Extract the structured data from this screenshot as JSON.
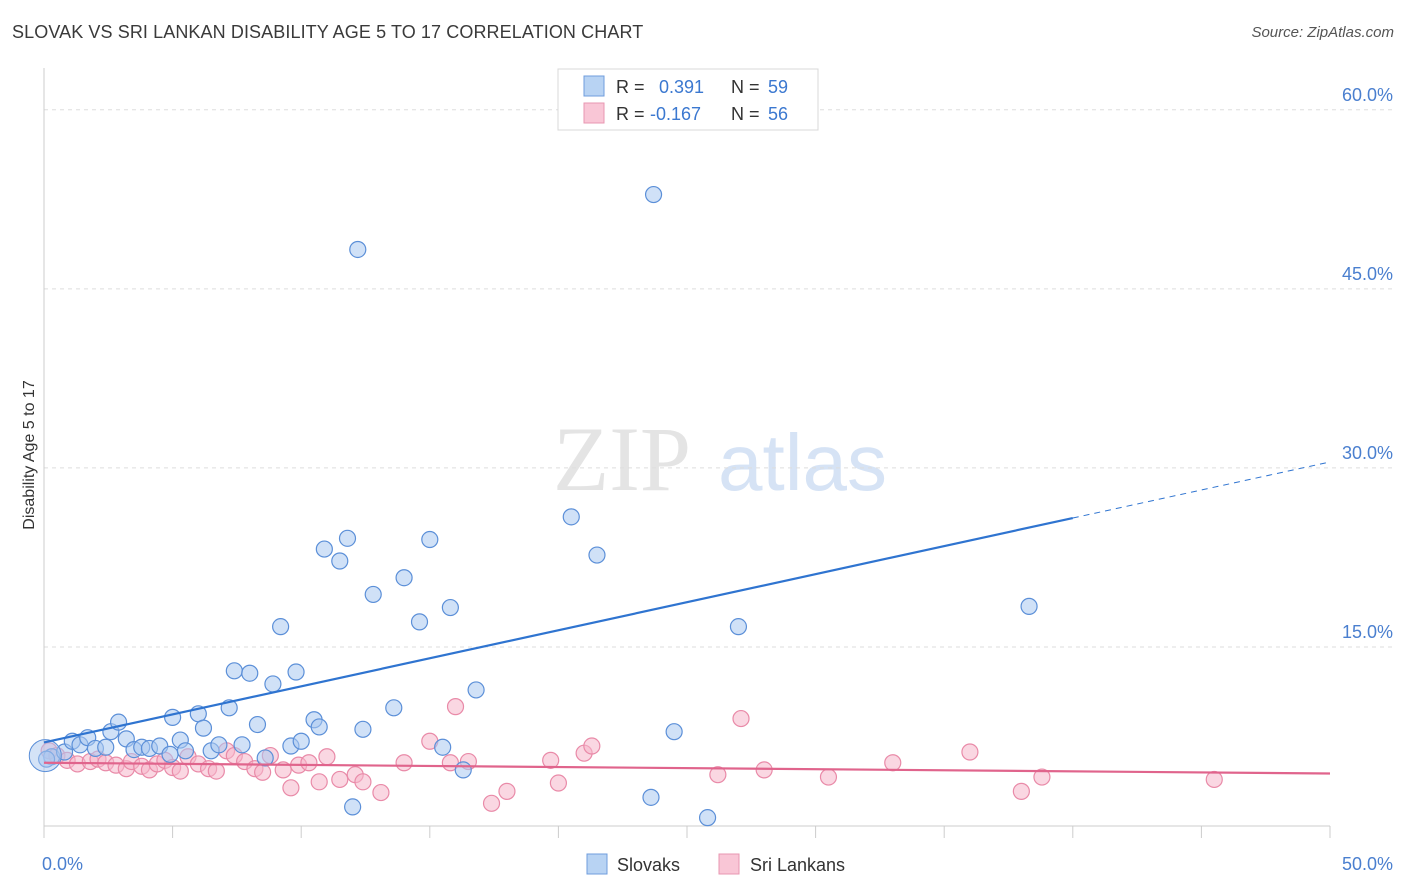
{
  "title": "SLOVAK VS SRI LANKAN DISABILITY AGE 5 TO 17 CORRELATION CHART",
  "source": "Source: ZipAtlas.com",
  "watermark": {
    "zip": "ZIP",
    "atlas": "atlas"
  },
  "colors": {
    "slovak_fill": "#a9c8f0",
    "slovak_stroke": "#5b8fd8",
    "slovak_line": "#2f74d0",
    "srilankan_fill": "#f6b7cb",
    "srilankan_stroke": "#e98aa8",
    "srilankan_line": "#e0648c",
    "tick": "#4a7fcf",
    "grid": "#dddddd"
  },
  "legend_top": {
    "rows": [
      {
        "r_label": "R = ",
        "r_value": "0.391",
        "n_label": "N = ",
        "n_value": "59"
      },
      {
        "r_label": "R = ",
        "r_value": "-0.167",
        "n_label": "N = ",
        "n_value": "56"
      }
    ]
  },
  "chart_data": {
    "type": "scatter",
    "title": "SLOVAK VS SRI LANKAN DISABILITY AGE 5 TO 17 CORRELATION CHART",
    "xlabel": "",
    "ylabel": "Disability Age 5 to 17",
    "xlim": [
      0,
      50
    ],
    "ylim": [
      0,
      63
    ],
    "x_tick_labels": [
      "0.0%",
      "50.0%"
    ],
    "y_ticks": [
      15,
      30,
      45,
      60
    ],
    "y_tick_labels": [
      "15.0%",
      "30.0%",
      "45.0%",
      "60.0%"
    ],
    "legend": [
      "Slovaks",
      "Sri Lankans"
    ],
    "series": [
      {
        "name": "Slovaks",
        "points": [
          [
            0.3,
            5.8
          ],
          [
            0.8,
            6.2
          ],
          [
            1.1,
            7.1
          ],
          [
            1.4,
            6.8
          ],
          [
            1.7,
            7.4
          ],
          [
            2.0,
            6.5
          ],
          [
            2.4,
            6.6
          ],
          [
            2.6,
            7.9
          ],
          [
            2.9,
            8.7
          ],
          [
            3.2,
            7.3
          ],
          [
            3.5,
            6.4
          ],
          [
            3.8,
            6.6
          ],
          [
            4.1,
            6.5
          ],
          [
            4.5,
            6.7
          ],
          [
            4.9,
            6.0
          ],
          [
            5.0,
            9.1
          ],
          [
            5.3,
            7.2
          ],
          [
            5.5,
            6.3
          ],
          [
            6.0,
            9.4
          ],
          [
            6.2,
            8.2
          ],
          [
            6.5,
            6.3
          ],
          [
            6.8,
            6.8
          ],
          [
            7.2,
            9.9
          ],
          [
            7.4,
            13.0
          ],
          [
            7.7,
            6.8
          ],
          [
            8.0,
            12.8
          ],
          [
            8.3,
            8.5
          ],
          [
            8.6,
            5.7
          ],
          [
            8.9,
            11.9
          ],
          [
            9.2,
            16.7
          ],
          [
            9.6,
            6.7
          ],
          [
            9.8,
            12.9
          ],
          [
            10.0,
            7.1
          ],
          [
            10.5,
            8.9
          ],
          [
            10.7,
            8.3
          ],
          [
            10.9,
            23.2
          ],
          [
            11.5,
            22.2
          ],
          [
            11.8,
            24.1
          ],
          [
            12.0,
            1.6
          ],
          [
            12.2,
            48.3
          ],
          [
            12.4,
            8.1
          ],
          [
            12.8,
            19.4
          ],
          [
            13.6,
            9.9
          ],
          [
            14.0,
            20.8
          ],
          [
            14.6,
            17.1
          ],
          [
            15.0,
            24.0
          ],
          [
            15.5,
            6.6
          ],
          [
            15.8,
            18.3
          ],
          [
            16.3,
            4.7
          ],
          [
            16.8,
            11.4
          ],
          [
            20.5,
            25.9
          ],
          [
            21.5,
            22.7
          ],
          [
            23.6,
            2.4
          ],
          [
            23.7,
            52.9
          ],
          [
            24.5,
            7.9
          ],
          [
            25.8,
            0.7
          ],
          [
            27.0,
            16.7
          ],
          [
            38.3,
            18.4
          ],
          [
            0.1,
            5.6
          ]
        ],
        "trend": {
          "x0": 0,
          "y0": 7.0,
          "x1": 40,
          "y1": 25.8,
          "dash_to_x": 50,
          "dash_to_y": 30.5
        }
      },
      {
        "name": "Sri Lankans",
        "points": [
          [
            0.2,
            6.3
          ],
          [
            0.5,
            5.9
          ],
          [
            0.9,
            5.5
          ],
          [
            1.3,
            5.2
          ],
          [
            1.8,
            5.4
          ],
          [
            2.1,
            5.6
          ],
          [
            2.4,
            5.3
          ],
          [
            2.8,
            5.1
          ],
          [
            3.2,
            4.8
          ],
          [
            3.4,
            5.4
          ],
          [
            3.8,
            5.0
          ],
          [
            4.1,
            4.7
          ],
          [
            4.4,
            5.2
          ],
          [
            4.7,
            5.5
          ],
          [
            5.0,
            4.9
          ],
          [
            5.3,
            4.6
          ],
          [
            5.6,
            5.8
          ],
          [
            6.0,
            5.2
          ],
          [
            6.4,
            4.8
          ],
          [
            6.7,
            4.6
          ],
          [
            7.1,
            6.3
          ],
          [
            7.4,
            5.9
          ],
          [
            7.8,
            5.4
          ],
          [
            8.2,
            4.8
          ],
          [
            8.5,
            4.5
          ],
          [
            8.8,
            5.9
          ],
          [
            9.3,
            4.7
          ],
          [
            9.6,
            3.2
          ],
          [
            9.9,
            5.1
          ],
          [
            10.3,
            5.3
          ],
          [
            10.7,
            3.7
          ],
          [
            11.0,
            5.8
          ],
          [
            11.5,
            3.9
          ],
          [
            12.1,
            4.3
          ],
          [
            12.4,
            3.7
          ],
          [
            13.1,
            2.8
          ],
          [
            14.0,
            5.3
          ],
          [
            15.0,
            7.1
          ],
          [
            15.8,
            5.3
          ],
          [
            16.0,
            10.0
          ],
          [
            16.5,
            5.4
          ],
          [
            17.4,
            1.9
          ],
          [
            18.0,
            2.9
          ],
          [
            19.7,
            5.5
          ],
          [
            20.0,
            3.6
          ],
          [
            21.0,
            6.1
          ],
          [
            21.3,
            6.7
          ],
          [
            26.2,
            4.3
          ],
          [
            27.1,
            9.0
          ],
          [
            28.0,
            4.7
          ],
          [
            30.5,
            4.1
          ],
          [
            33.0,
            5.3
          ],
          [
            36.0,
            6.2
          ],
          [
            38.0,
            2.9
          ],
          [
            38.8,
            4.1
          ],
          [
            45.5,
            3.9
          ]
        ],
        "trend": {
          "x0": 0,
          "y0": 5.3,
          "x1": 50,
          "y1": 4.4
        }
      }
    ]
  }
}
